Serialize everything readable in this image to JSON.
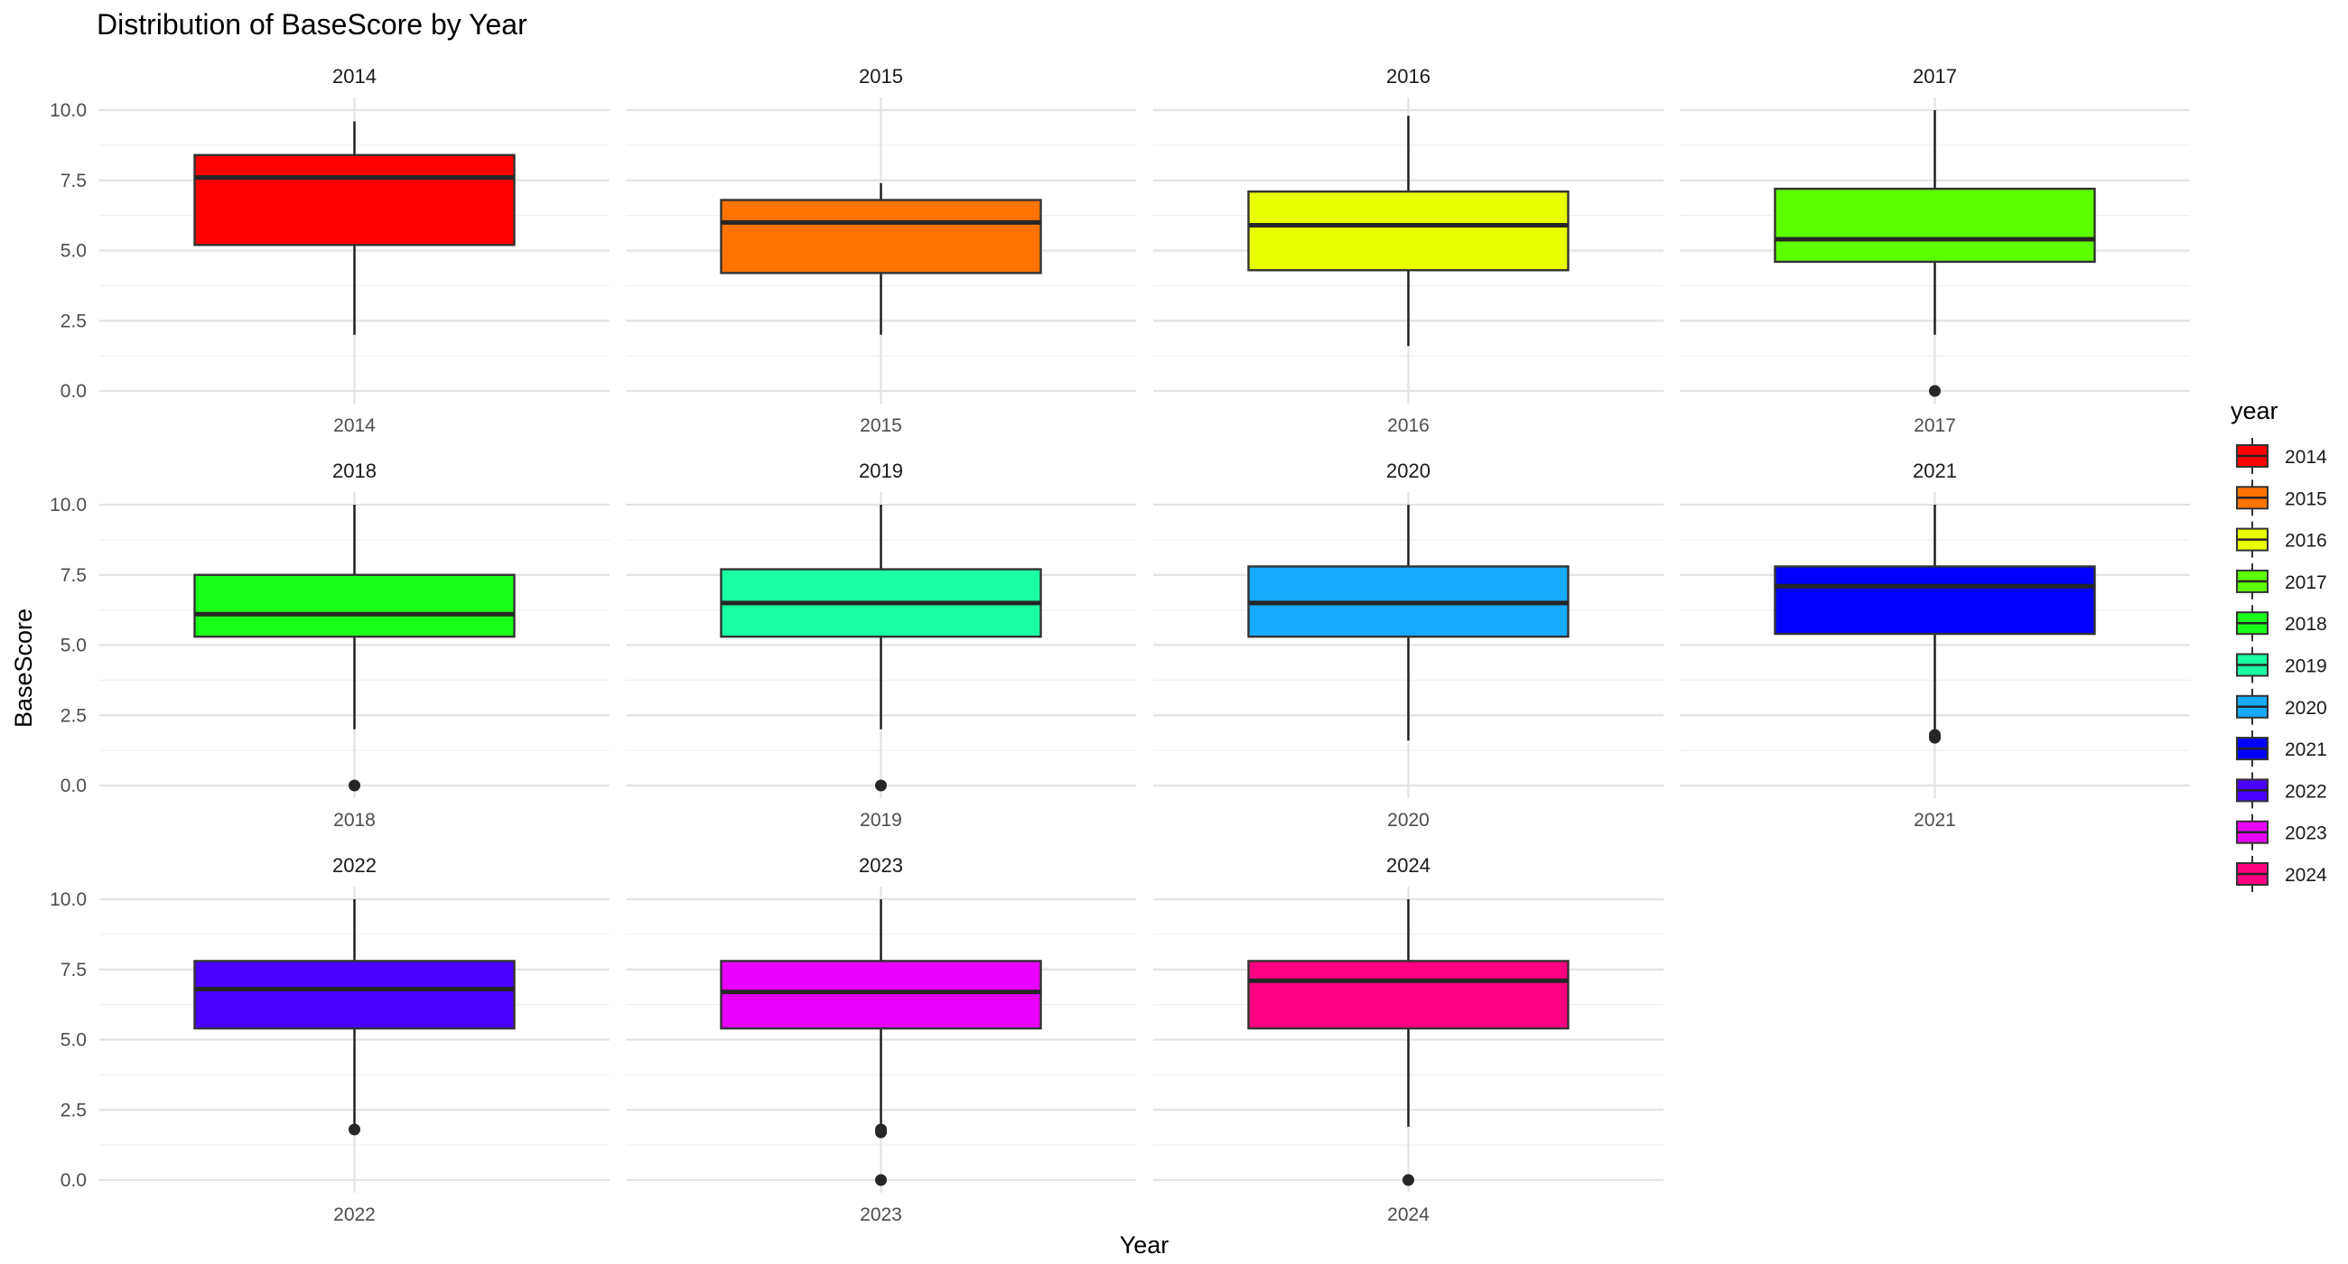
{
  "chart_data": {
    "type": "boxplot",
    "title": "Distribution of BaseScore by Year",
    "xlabel": "Year",
    "ylabel": "BaseScore",
    "ylim": [
      0,
      10
    ],
    "yticks": [
      "0.0",
      "2.5",
      "5.0",
      "7.5",
      "10.0"
    ],
    "grid": true,
    "facet_columns": 4,
    "legend": {
      "title": "year",
      "position": "right"
    },
    "series": [
      {
        "name": "2014",
        "color": "#FF0000",
        "whisker_low": 2.0,
        "q1": 5.2,
        "median": 7.6,
        "q3": 8.4,
        "whisker_high": 9.6,
        "outliers": []
      },
      {
        "name": "2015",
        "color": "#FF7400",
        "whisker_low": 2.0,
        "q1": 4.2,
        "median": 6.0,
        "q3": 6.8,
        "whisker_high": 7.4,
        "outliers": []
      },
      {
        "name": "2016",
        "color": "#E8FF00",
        "whisker_low": 1.6,
        "q1": 4.3,
        "median": 5.9,
        "q3": 7.1,
        "whisker_high": 9.8,
        "outliers": []
      },
      {
        "name": "2017",
        "color": "#5DFF00",
        "whisker_low": 2.0,
        "q1": 4.6,
        "median": 5.4,
        "q3": 7.2,
        "whisker_high": 10.0,
        "outliers": [
          0.0
        ]
      },
      {
        "name": "2018",
        "color": "#1AFF1A",
        "whisker_low": 2.0,
        "q1": 5.3,
        "median": 6.1,
        "q3": 7.5,
        "whisker_high": 10.0,
        "outliers": [
          0.0
        ]
      },
      {
        "name": "2019",
        "color": "#1AFFA3",
        "whisker_low": 2.0,
        "q1": 5.3,
        "median": 6.5,
        "q3": 7.7,
        "whisker_high": 10.0,
        "outliers": [
          0.0
        ]
      },
      {
        "name": "2020",
        "color": "#17AAFF",
        "whisker_low": 1.6,
        "q1": 5.3,
        "median": 6.5,
        "q3": 7.8,
        "whisker_high": 10.0,
        "outliers": []
      },
      {
        "name": "2021",
        "color": "#0000FF",
        "whisker_low": 2.0,
        "q1": 5.4,
        "median": 7.1,
        "q3": 7.8,
        "whisker_high": 10.0,
        "outliers": [
          1.8,
          1.7
        ]
      },
      {
        "name": "2022",
        "color": "#4A00FF",
        "whisker_low": 2.0,
        "q1": 5.4,
        "median": 6.8,
        "q3": 7.8,
        "whisker_high": 10.0,
        "outliers": [
          1.8
        ]
      },
      {
        "name": "2023",
        "color": "#E800FF",
        "whisker_low": 2.0,
        "q1": 5.4,
        "median": 6.7,
        "q3": 7.8,
        "whisker_high": 10.0,
        "outliers": [
          1.8,
          1.7,
          0.0
        ]
      },
      {
        "name": "2024",
        "color": "#FF0080",
        "whisker_low": 1.9,
        "q1": 5.4,
        "median": 7.1,
        "q3": 7.8,
        "whisker_high": 10.0,
        "outliers": [
          0.0
        ]
      }
    ]
  }
}
